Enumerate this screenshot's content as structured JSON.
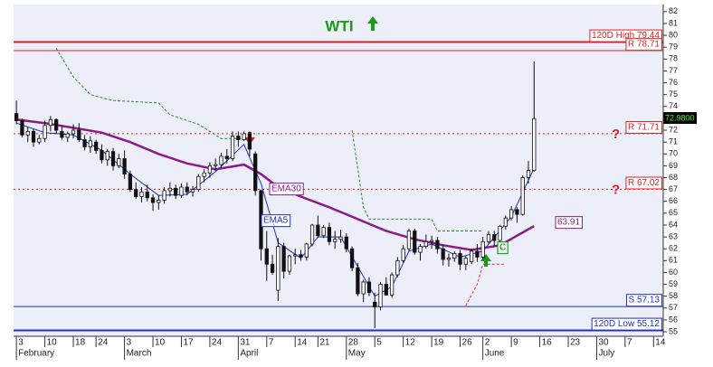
{
  "chart_data": {
    "type": "candlestick",
    "title": "WTI",
    "ohlc": [
      [
        73.4,
        74.5,
        72.5,
        72.8
      ],
      [
        72.8,
        73.0,
        71.4,
        71.6
      ],
      [
        71.6,
        72.3,
        71.0,
        71.9
      ],
      [
        71.9,
        72.1,
        70.6,
        71.0
      ],
      [
        71.0,
        71.6,
        70.8,
        71.3
      ],
      [
        71.3,
        72.8,
        71.0,
        72.4
      ],
      [
        72.4,
        73.2,
        71.9,
        72.9
      ],
      [
        72.9,
        73.0,
        71.7,
        72.0
      ],
      [
        71.9,
        72.4,
        71.2,
        71.4
      ],
      [
        71.4,
        71.9,
        71.0,
        71.7
      ],
      [
        71.7,
        72.5,
        71.3,
        72.0
      ],
      [
        72.0,
        72.6,
        71.0,
        71.2
      ],
      [
        71.2,
        71.6,
        70.3,
        70.6
      ],
      [
        70.6,
        71.5,
        70.1,
        71.1
      ],
      [
        71.0,
        71.2,
        70.0,
        70.3
      ],
      [
        70.3,
        70.8,
        69.2,
        69.5
      ],
      [
        69.5,
        70.4,
        69.0,
        70.2
      ],
      [
        70.2,
        70.5,
        68.6,
        69.0
      ],
      [
        69.0,
        70.0,
        68.8,
        69.6
      ],
      [
        69.6,
        70.3,
        67.9,
        68.3
      ],
      [
        68.3,
        68.6,
        66.8,
        67.0
      ],
      [
        67.0,
        67.6,
        66.2,
        66.4
      ],
      [
        66.4,
        67.2,
        65.9,
        66.8
      ],
      [
        66.8,
        67.4,
        66.0,
        66.3
      ],
      [
        66.3,
        66.6,
        65.2,
        65.9
      ],
      [
        65.9,
        66.5,
        65.3,
        66.1
      ],
      [
        66.1,
        67.2,
        65.8,
        66.9
      ],
      [
        66.9,
        67.6,
        66.4,
        67.1
      ],
      [
        67.1,
        67.4,
        66.2,
        66.5
      ],
      [
        66.5,
        67.5,
        66.3,
        67.2
      ],
      [
        67.2,
        67.6,
        66.5,
        66.8
      ],
      [
        66.8,
        67.3,
        66.4,
        67.0
      ],
      [
        67.0,
        68.3,
        66.8,
        68.1
      ],
      [
        68.1,
        68.7,
        67.6,
        68.4
      ],
      [
        68.4,
        69.3,
        68.0,
        69.0
      ],
      [
        69.0,
        69.6,
        68.6,
        69.1
      ],
      [
        69.1,
        70.1,
        68.8,
        69.8
      ],
      [
        69.8,
        70.4,
        69.2,
        69.6
      ],
      [
        69.6,
        71.9,
        69.4,
        71.5
      ],
      [
        71.5,
        71.9,
        70.6,
        71.2
      ],
      [
        71.2,
        71.9,
        71.1,
        71.7
      ],
      [
        71.7,
        71.9,
        69.8,
        70.4
      ],
      [
        70.0,
        70.2,
        66.5,
        66.9
      ],
      [
        66.9,
        67.0,
        61.0,
        62.0
      ],
      [
        62.0,
        63.5,
        59.3,
        60.7
      ],
      [
        60.7,
        61.5,
        59.8,
        60.0
      ],
      [
        58.5,
        62.9,
        57.6,
        62.2
      ],
      [
        62.2,
        62.5,
        59.5,
        60.1
      ],
      [
        60.1,
        61.5,
        59.8,
        61.4
      ],
      [
        61.4,
        62.0,
        60.7,
        61.5
      ],
      [
        61.5,
        61.9,
        61.0,
        61.3
      ],
      [
        61.3,
        62.5,
        61.0,
        62.4
      ],
      [
        62.4,
        64.1,
        62.2,
        64.0
      ],
      [
        64.0,
        64.8,
        63.0,
        63.1
      ],
      [
        63.1,
        64.0,
        62.9,
        63.8
      ],
      [
        63.8,
        64.2,
        62.3,
        62.6
      ],
      [
        62.6,
        63.5,
        62.0,
        62.8
      ],
      [
        62.8,
        63.6,
        62.5,
        63.0
      ],
      [
        63.0,
        63.3,
        61.7,
        62.0
      ],
      [
        62.0,
        62.2,
        60.1,
        60.4
      ],
      [
        60.4,
        60.8,
        58.0,
        58.2
      ],
      [
        58.2,
        59.4,
        57.5,
        59.2
      ],
      [
        59.2,
        59.6,
        58.0,
        58.3
      ],
      [
        57.5,
        58.3,
        55.3,
        57.1
      ],
      [
        57.1,
        59.2,
        56.8,
        59.0
      ],
      [
        59.0,
        59.6,
        58.1,
        58.1
      ],
      [
        58.1,
        60.0,
        57.9,
        59.8
      ],
      [
        59.8,
        61.3,
        59.6,
        61.0
      ],
      [
        61.0,
        62.3,
        60.8,
        62.0
      ],
      [
        62.0,
        63.7,
        61.8,
        63.5
      ],
      [
        63.5,
        63.7,
        61.5,
        61.7
      ],
      [
        61.7,
        62.4,
        61.0,
        62.2
      ],
      [
        62.2,
        63.2,
        62.0,
        62.6
      ],
      [
        62.6,
        63.1,
        62.0,
        62.7
      ],
      [
        62.7,
        63.0,
        61.6,
        62.0
      ],
      [
        62.0,
        62.3,
        60.6,
        61.1
      ],
      [
        61.1,
        61.6,
        60.5,
        61.2
      ],
      [
        61.2,
        61.8,
        60.9,
        61.6
      ],
      [
        61.6,
        61.9,
        60.2,
        60.7
      ],
      [
        60.7,
        61.4,
        60.2,
        61.2
      ],
      [
        60.9,
        62.0,
        60.7,
        61.8
      ],
      [
        61.8,
        62.4,
        60.9,
        61.3
      ],
      [
        61.3,
        63.0,
        61.1,
        62.6
      ],
      [
        62.6,
        63.5,
        62.4,
        63.2
      ],
      [
        63.2,
        63.5,
        62.2,
        62.7
      ],
      [
        62.7,
        64.0,
        62.5,
        63.9
      ],
      [
        63.9,
        64.8,
        63.6,
        64.6
      ],
      [
        64.6,
        65.6,
        64.4,
        65.3
      ],
      [
        65.3,
        65.5,
        64.2,
        64.9
      ],
      [
        64.9,
        68.2,
        64.8,
        68.0
      ],
      [
        68.0,
        69.4,
        67.5,
        68.6
      ],
      [
        68.6,
        77.8,
        68.5,
        72.98
      ]
    ],
    "last_price_label": "72.9800",
    "overlays": [
      {
        "name": "EMA30",
        "color": "#8b1a8b",
        "style": "solid",
        "x": [
          0,
          5,
          10,
          15,
          20,
          25,
          30,
          35,
          40,
          43,
          46,
          50,
          55,
          60,
          65,
          70,
          75,
          80,
          85,
          91
        ],
        "values": [
          72.9,
          72.6,
          72.2,
          71.8,
          71.0,
          70.0,
          69.2,
          68.7,
          69.1,
          68.3,
          67.2,
          66.4,
          65.5,
          64.5,
          63.5,
          62.8,
          62.3,
          61.9,
          62.3,
          63.91
        ],
        "value_label": "63.91"
      },
      {
        "name": "EMA5",
        "color": "#2030c0",
        "style": "thin",
        "x": [
          0,
          5,
          10,
          15,
          20,
          25,
          30,
          35,
          40,
          43,
          46,
          50,
          53,
          57,
          60,
          63,
          66,
          69,
          73,
          78,
          82,
          87,
          91
        ],
        "values": [
          72.6,
          71.8,
          71.6,
          70.3,
          68.3,
          66.5,
          66.6,
          68.5,
          70.8,
          67.5,
          62.5,
          61.2,
          63.0,
          63.0,
          60.5,
          58.0,
          58.8,
          61.8,
          62.4,
          61.3,
          61.8,
          64.7,
          68.8
        ]
      },
      {
        "color": "#2a8a2a",
        "style": "dashed",
        "x": [
          7,
          10,
          13,
          17,
          25,
          27,
          32,
          36,
          41,
          null,
          59,
          61,
          62,
          73,
          74,
          82
        ],
        "values": [
          78.9,
          76.5,
          75.0,
          74.5,
          74.3,
          73.3,
          72.5,
          71.3,
          71.3,
          null,
          72.0,
          65.5,
          64.5,
          64.5,
          63.5,
          63.5
        ]
      },
      {
        "color": "#e03030",
        "style": "dashed",
        "x": [
          79,
          81,
          82,
          86
        ],
        "values": [
          57.2,
          59.0,
          60.7,
          60.7
        ]
      }
    ],
    "levels": [
      {
        "label": "120D High 79.44",
        "value": 79.44,
        "color": "#e02020",
        "style": "thick"
      },
      {
        "label": "R 78.71",
        "value": 78.71,
        "color": "#e02020",
        "style": "solid"
      },
      {
        "label": "R 71.71",
        "value": 71.71,
        "color": "#e02020",
        "style": "dotted"
      },
      {
        "label": "R 67.02",
        "value": 67.02,
        "color": "#e02020",
        "style": "dotted"
      },
      {
        "label": "S 57.13",
        "value": 57.13,
        "color": "#2030c0",
        "style": "solid"
      },
      {
        "label": "120D Low 55.12",
        "value": 55.12,
        "color": "#2030c0",
        "style": "thick"
      }
    ],
    "markers": [
      "?",
      "?",
      "C"
    ],
    "ylim": [
      54.62,
      82.6
    ],
    "yticks": [
      55,
      56,
      57,
      58,
      59,
      60,
      61,
      62,
      63,
      64,
      65,
      66,
      67,
      68,
      69,
      70,
      71,
      72,
      73,
      74,
      75,
      76,
      77,
      78,
      79,
      80,
      81,
      82
    ],
    "xlim": [
      -0.5,
      113.7
    ],
    "xticks": [
      {
        "value": 0,
        "label": "3"
      },
      {
        "value": 5,
        "label": "10"
      },
      {
        "value": 10,
        "label": "18"
      },
      {
        "value": 14,
        "label": "24"
      },
      {
        "value": 19,
        "label": "3"
      },
      {
        "value": 24,
        "label": "10"
      },
      {
        "value": 29,
        "label": "17"
      },
      {
        "value": 34,
        "label": "24"
      },
      {
        "value": 39,
        "label": "31"
      },
      {
        "value": 44,
        "label": "7"
      },
      {
        "value": 49,
        "label": "14"
      },
      {
        "value": 53,
        "label": "21"
      },
      {
        "value": 58,
        "label": "28"
      },
      {
        "value": 63,
        "label": "5"
      },
      {
        "value": 68,
        "label": "12"
      },
      {
        "value": 73,
        "label": "19"
      },
      {
        "value": 78,
        "label": "26"
      },
      {
        "value": 82,
        "label": "2"
      },
      {
        "value": 87,
        "label": "9"
      },
      {
        "value": 92,
        "label": "16"
      },
      {
        "value": 97,
        "label": "23"
      },
      {
        "value": 102,
        "label": "30"
      },
      {
        "value": 107,
        "label": "7"
      },
      {
        "value": 112,
        "label": "14"
      }
    ],
    "months": [
      {
        "value": 0,
        "label": "February"
      },
      {
        "value": 19,
        "label": "March"
      },
      {
        "value": 39,
        "label": "April"
      },
      {
        "value": 58,
        "label": "May"
      },
      {
        "value": 82,
        "label": "June"
      },
      {
        "value": 102,
        "label": "July"
      }
    ]
  }
}
